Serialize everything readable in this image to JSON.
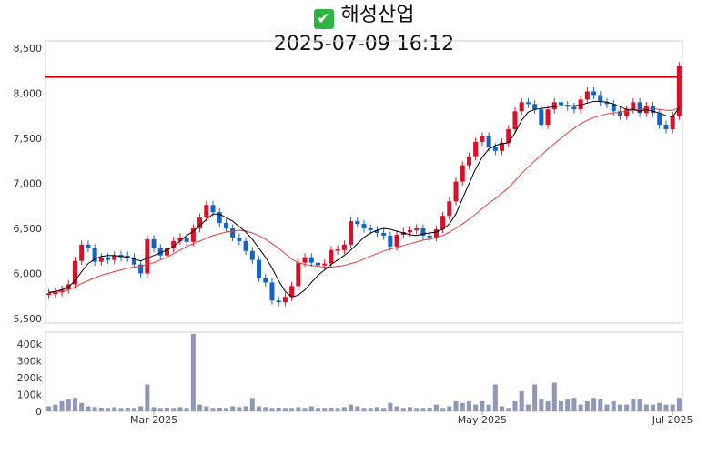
{
  "title": "해성산업",
  "title_icon": "check-mark-icon",
  "subtitle": "2025-07-09 16:12",
  "colors": {
    "up": "#d8102a",
    "down": "#1565c0",
    "ma_short": "#000000",
    "ma_long": "#e53935",
    "volume": "#8f98b8",
    "ref_line": "#e00000"
  },
  "chart_data": [
    {
      "type": "candlestick",
      "title": "해성산업",
      "y_ticks": [
        "8,500",
        "8,000",
        "7,500",
        "7,000",
        "6,500",
        "6,000",
        "5,500"
      ],
      "y_tick_values": [
        8500,
        8000,
        7500,
        7000,
        6500,
        6000,
        5500
      ],
      "ylim": [
        5450,
        8580
      ],
      "reference_line": 8180,
      "grid": false,
      "candles_close": [
        5780,
        5790,
        5820,
        5880,
        6140,
        6320,
        6280,
        6130,
        6180,
        6150,
        6200,
        6190,
        6180,
        6100,
        6000,
        6380,
        6280,
        6200,
        6280,
        6360,
        6400,
        6350,
        6500,
        6620,
        6760,
        6680,
        6560,
        6500,
        6400,
        6360,
        6250,
        6150,
        5950,
        5900,
        5700,
        5680,
        5740,
        5860,
        6120,
        6180,
        6120,
        6090,
        6110,
        6260,
        6260,
        6320,
        6580,
        6550,
        6500,
        6480,
        6450,
        6420,
        6300,
        6430,
        6460,
        6480,
        6500,
        6420,
        6400,
        6490,
        6640,
        6800,
        7020,
        7200,
        7300,
        7460,
        7520,
        7400,
        7360,
        7450,
        7600,
        7800,
        7900,
        7880,
        7820,
        7650,
        7820,
        7900,
        7870,
        7850,
        7820,
        7930,
        8020,
        7980,
        7900,
        7880,
        7800,
        7750,
        7820,
        7900,
        7780,
        7860,
        7780,
        7650,
        7600,
        7750,
        8300
      ],
      "ma_short": [
        5790,
        5800,
        5820,
        5850,
        5920,
        6020,
        6110,
        6160,
        6190,
        6200,
        6200,
        6190,
        6180,
        6160,
        6140,
        6170,
        6200,
        6230,
        6260,
        6300,
        6360,
        6420,
        6470,
        6530,
        6600,
        6660,
        6660,
        6620,
        6580,
        6520,
        6460,
        6380,
        6280,
        6180,
        6060,
        5920,
        5800,
        5740,
        5760,
        5820,
        5900,
        5980,
        6040,
        6100,
        6150,
        6200,
        6260,
        6330,
        6400,
        6450,
        6480,
        6500,
        6490,
        6470,
        6450,
        6430,
        6420,
        6440,
        6450,
        6460,
        6490,
        6550,
        6660,
        6830,
        7000,
        7160,
        7290,
        7380,
        7420,
        7440,
        7450,
        7560,
        7700,
        7790,
        7820,
        7830,
        7840,
        7850,
        7860,
        7860,
        7860,
        7870,
        7890,
        7910,
        7910,
        7900,
        7880,
        7850,
        7820,
        7820,
        7800,
        7820,
        7800,
        7780,
        7750,
        7740,
        7840
      ],
      "ma_long": [
        5780,
        5790,
        5800,
        5820,
        5850,
        5890,
        5920,
        5950,
        5980,
        6000,
        6020,
        6040,
        6060,
        6070,
        6080,
        6100,
        6120,
        6150,
        6180,
        6220,
        6260,
        6300,
        6330,
        6360,
        6390,
        6420,
        6440,
        6460,
        6470,
        6480,
        6470,
        6450,
        6420,
        6380,
        6330,
        6280,
        6220,
        6160,
        6120,
        6100,
        6090,
        6080,
        6070,
        6070,
        6080,
        6090,
        6110,
        6130,
        6160,
        6190,
        6220,
        6250,
        6270,
        6290,
        6310,
        6330,
        6350,
        6370,
        6380,
        6400,
        6420,
        6460,
        6500,
        6550,
        6600,
        6660,
        6720,
        6780,
        6830,
        6890,
        6950,
        7030,
        7110,
        7180,
        7250,
        7310,
        7380,
        7440,
        7500,
        7560,
        7610,
        7660,
        7700,
        7730,
        7750,
        7770,
        7780,
        7790,
        7800,
        7810,
        7820,
        7830,
        7830,
        7820,
        7810,
        7810,
        7840
      ],
      "volume_ticks": [
        "400k",
        "300k",
        "200k",
        "100k",
        "0"
      ],
      "volume_tick_values": [
        400000,
        300000,
        200000,
        100000,
        0
      ],
      "volume_max": 470000,
      "volume": [
        30000,
        40000,
        60000,
        70000,
        80000,
        50000,
        30000,
        25000,
        22000,
        20000,
        25000,
        20000,
        22000,
        20000,
        30000,
        160000,
        25000,
        20000,
        22000,
        20000,
        25000,
        20000,
        460000,
        40000,
        30000,
        20000,
        22000,
        20000,
        30000,
        25000,
        30000,
        80000,
        30000,
        25000,
        20000,
        22000,
        20000,
        20000,
        25000,
        20000,
        30000,
        20000,
        20000,
        22000,
        20000,
        25000,
        40000,
        30000,
        20000,
        20000,
        25000,
        20000,
        50000,
        30000,
        20000,
        25000,
        20000,
        20000,
        22000,
        40000,
        20000,
        30000,
        60000,
        50000,
        60000,
        40000,
        60000,
        40000,
        160000,
        30000,
        20000,
        60000,
        120000,
        40000,
        160000,
        70000,
        60000,
        170000,
        60000,
        70000,
        80000,
        40000,
        60000,
        80000,
        70000,
        40000,
        60000,
        40000,
        40000,
        70000,
        70000,
        40000,
        40000,
        50000,
        40000,
        40000,
        80000
      ],
      "x_labels": [
        "Mar 2025",
        "May 2025",
        "Jul 2025"
      ],
      "x_label_index": [
        16,
        66,
        95
      ]
    }
  ]
}
